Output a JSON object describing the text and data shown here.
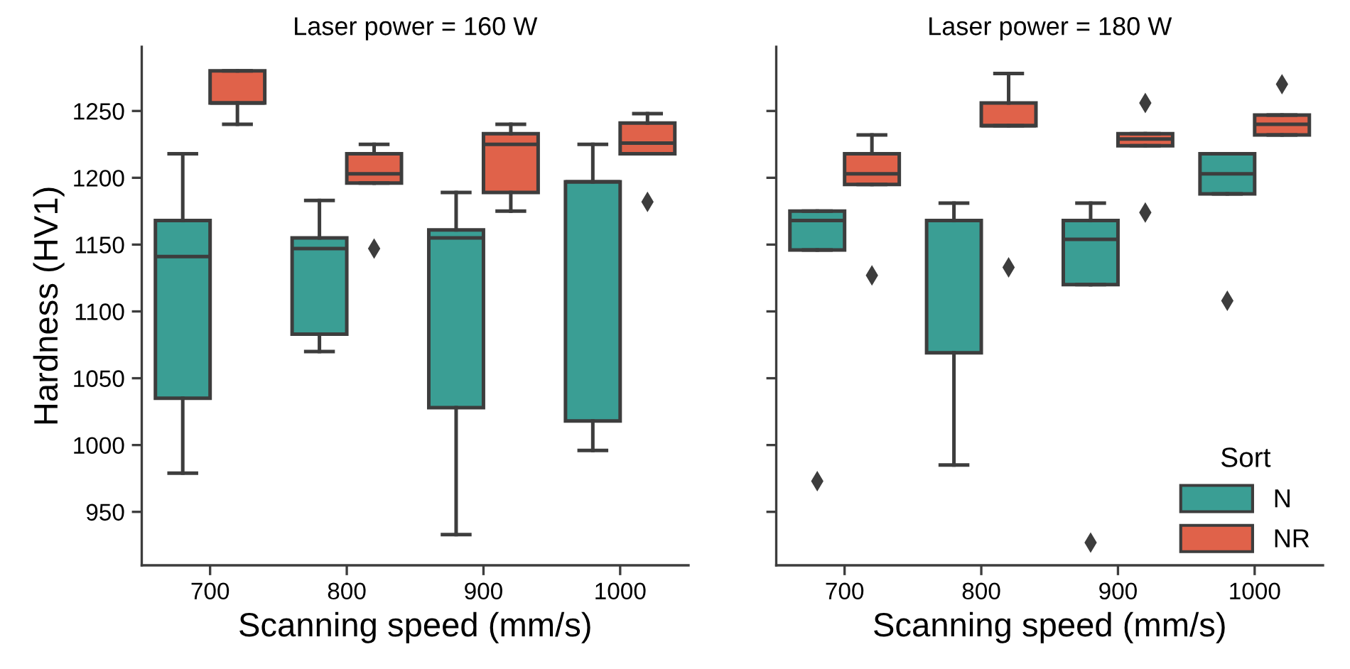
{
  "chart_data": [
    {
      "type": "box",
      "title": "Laser power = 160 W",
      "xlabel": "Scanning speed (mm/s)",
      "ylabel": "Hardness (HV1)",
      "categories": [
        "700",
        "800",
        "900",
        "1000"
      ],
      "ylim": [
        910,
        1298
      ],
      "yticks": [
        950,
        1000,
        1050,
        1100,
        1150,
        1200,
        1250
      ],
      "marker": "diamond",
      "series": [
        {
          "color": "#3a9e94",
          "boxes": [
            {
              "low": 979,
              "q1": 1035,
              "median": 1141,
              "q3": 1168,
              "high": 1218
            },
            {
              "low": 1070,
              "q1": 1083,
              "median": 1147,
              "q3": 1155,
              "high": 1183
            },
            {
              "low": 933,
              "q1": 1028,
              "median": 1155,
              "q3": 1161,
              "high": 1189
            },
            {
              "low": 996,
              "q1": 1018,
              "median": 1197,
              "q3": 1197,
              "high": 1225
            }
          ]
        },
        {
          "color": "#e0624a",
          "boxes": [
            {
              "low": 1240,
              "q1": 1256,
              "median": 1256,
              "q3": 1280,
              "high": 1280
            },
            {
              "low": 1196,
              "q1": 1196,
              "median": 1203,
              "q3": 1218,
              "high": 1225,
              "outliers": [
                1147
              ]
            },
            {
              "low": 1175,
              "q1": 1189,
              "median": 1225,
              "q3": 1233,
              "high": 1240
            },
            {
              "low": 1218,
              "q1": 1218,
              "median": 1226,
              "q3": 1241,
              "high": 1248,
              "outliers": [
                1182
              ]
            }
          ]
        }
      ]
    },
    {
      "type": "box",
      "title": "Laser power = 180 W",
      "xlabel": "Scanning speed (mm/s)",
      "categories": [
        "700",
        "800",
        "900",
        "1000"
      ],
      "ylim": [
        910,
        1298
      ],
      "yticks": [
        950,
        1000,
        1050,
        1100,
        1150,
        1200,
        1250
      ],
      "tick_labels": "x",
      "legend": "bottom right",
      "legend_title": "Sort",
      "marker": "diamond",
      "series": [
        {
          "name": "N",
          "color": "#3a9e94",
          "boxes": [
            {
              "low": 1146,
              "q1": 1146,
              "median": 1168,
              "q3": 1175,
              "high": 1175,
              "outliers": [
                973
              ]
            },
            {
              "low": 985,
              "q1": 1069,
              "median": 1168,
              "q3": 1168,
              "high": 1181
            },
            {
              "low": 1120,
              "q1": 1120,
              "median": 1154,
              "q3": 1168,
              "high": 1181,
              "outliers": [
                927
              ]
            },
            {
              "low": 1188,
              "q1": 1188,
              "median": 1203,
              "q3": 1218,
              "high": 1218,
              "outliers": [
                1108
              ]
            }
          ]
        },
        {
          "name": "NR",
          "color": "#e0624a",
          "boxes": [
            {
              "low": 1195,
              "q1": 1195,
              "median": 1203,
              "q3": 1218,
              "high": 1232,
              "outliers": [
                1127
              ]
            },
            {
              "low": 1239,
              "q1": 1239,
              "median": 1239,
              "q3": 1256,
              "high": 1278,
              "outliers": [
                1133
              ]
            },
            {
              "low": 1224,
              "q1": 1224,
              "median": 1229,
              "q3": 1233,
              "high": 1233,
              "outliers": [
                1256,
                1174
              ]
            },
            {
              "low": 1232,
              "q1": 1232,
              "median": 1240,
              "q3": 1247,
              "high": 1247,
              "outliers": [
                1270
              ]
            }
          ]
        }
      ]
    }
  ]
}
